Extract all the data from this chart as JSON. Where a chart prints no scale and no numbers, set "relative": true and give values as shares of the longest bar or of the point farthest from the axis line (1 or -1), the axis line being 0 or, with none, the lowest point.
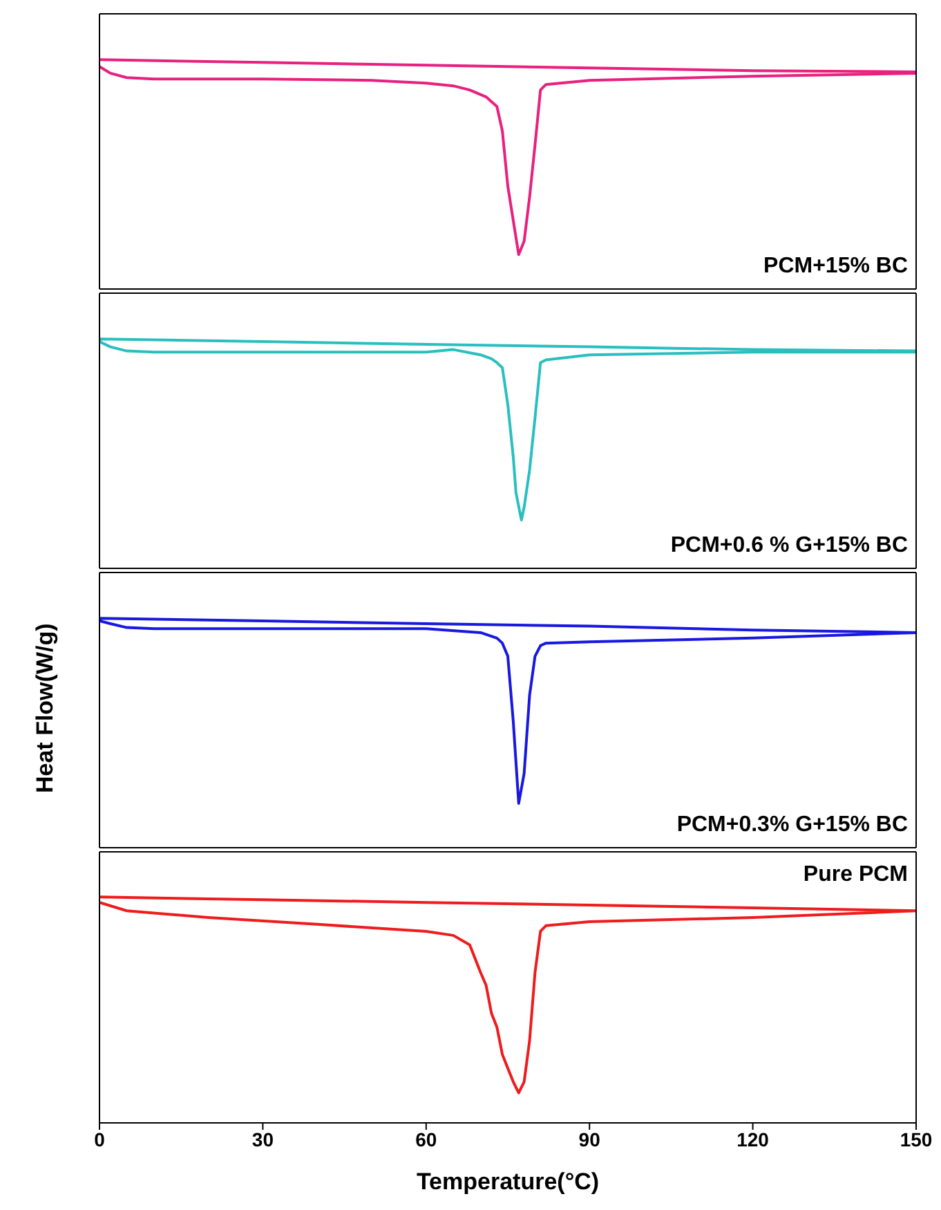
{
  "chart_data": [
    {
      "type": "line",
      "relative": true,
      "xlim": [
        0,
        150
      ],
      "xticks": [
        0,
        30,
        60,
        90,
        120,
        150
      ],
      "tick_labels": false,
      "legend": false,
      "grid": false,
      "marker": "none",
      "line_style": "solid",
      "series": [
        {
          "name": "PCM+15% BC",
          "color": "#e8207f",
          "x": [
            0,
            30,
            60,
            90,
            120,
            150,
            150,
            120,
            90,
            82,
            81,
            80,
            79,
            78,
            77,
            76,
            75,
            74,
            73,
            71,
            68,
            65,
            60,
            50,
            30,
            10,
            5,
            2,
            0
          ],
          "values": [
            1.0,
            0.988,
            0.976,
            0.964,
            0.952,
            0.947,
            0.941,
            0.928,
            0.91,
            0.892,
            0.868,
            0.628,
            0.401,
            0.209,
            0.15,
            0.299,
            0.449,
            0.689,
            0.796,
            0.838,
            0.868,
            0.886,
            0.898,
            0.91,
            0.916,
            0.916,
            0.922,
            0.941,
            0.97
          ]
        }
      ]
    },
    {
      "type": "line",
      "relative": true,
      "xlim": [
        0,
        150
      ],
      "xticks": [
        0,
        30,
        60,
        90,
        120,
        150
      ],
      "tick_labels": false,
      "legend": false,
      "grid": false,
      "marker": "none",
      "line_style": "solid",
      "series": [
        {
          "name": "PCM+0.6 % G+15% BC",
          "color": "#2abfbf",
          "x": [
            0,
            30,
            60,
            90,
            120,
            150,
            150,
            120,
            90,
            82,
            81,
            80,
            79,
            78,
            77.5,
            76.5,
            76,
            75,
            74,
            73,
            72,
            70,
            65,
            60,
            30,
            10,
            5,
            2,
            0
          ],
          "values": [
            1.0,
            0.989,
            0.977,
            0.966,
            0.954,
            0.948,
            0.943,
            0.943,
            0.931,
            0.909,
            0.897,
            0.657,
            0.428,
            0.267,
            0.211,
            0.33,
            0.486,
            0.714,
            0.875,
            0.897,
            0.914,
            0.931,
            0.954,
            0.943,
            0.943,
            0.943,
            0.948,
            0.966,
            0.989
          ]
        }
      ]
    },
    {
      "type": "line",
      "relative": true,
      "xlim": [
        0,
        150
      ],
      "xticks": [
        0,
        30,
        60,
        90,
        120,
        150
      ],
      "tick_labels": false,
      "legend": false,
      "grid": false,
      "marker": "none",
      "line_style": "solid",
      "ylabel": "Heat Flow(W/g)",
      "series": [
        {
          "name": "PCM+0.3% G+15% BC",
          "color": "#1818e0",
          "x": [
            0,
            30,
            60,
            90,
            120,
            150,
            120,
            90,
            82,
            81,
            80,
            79,
            78,
            77,
            76.5,
            76,
            75,
            74,
            73,
            70,
            60,
            30,
            10,
            5,
            2,
            0
          ],
          "values": [
            1.0,
            0.989,
            0.977,
            0.966,
            0.949,
            0.938,
            0.914,
            0.898,
            0.892,
            0.881,
            0.835,
            0.665,
            0.324,
            0.193,
            0.372,
            0.551,
            0.835,
            0.892,
            0.914,
            0.938,
            0.955,
            0.955,
            0.955,
            0.96,
            0.977,
            0.989
          ]
        }
      ]
    },
    {
      "type": "line",
      "relative": true,
      "xlim": [
        0,
        150
      ],
      "xticks": [
        0,
        30,
        60,
        90,
        120,
        150
      ],
      "tick_labels": "x",
      "xlabel": "Temperature(°C)",
      "legend": false,
      "grid": false,
      "marker": "none",
      "line_style": "solid",
      "series": [
        {
          "name": "Pure PCM",
          "color": "#ee1c1c",
          "x": [
            0,
            30,
            60,
            90,
            120,
            150,
            150,
            120,
            90,
            82,
            81,
            80,
            79,
            78,
            77,
            76,
            75,
            74,
            73,
            72,
            71,
            70,
            68,
            65,
            60,
            40,
            20,
            5,
            0
          ],
          "values": [
            1.0,
            0.988,
            0.976,
            0.964,
            0.952,
            0.939,
            0.939,
            0.909,
            0.891,
            0.873,
            0.848,
            0.666,
            0.364,
            0.182,
            0.133,
            0.182,
            0.242,
            0.303,
            0.424,
            0.485,
            0.61,
            0.666,
            0.788,
            0.83,
            0.848,
            0.879,
            0.909,
            0.939,
            0.976
          ]
        }
      ]
    }
  ]
}
